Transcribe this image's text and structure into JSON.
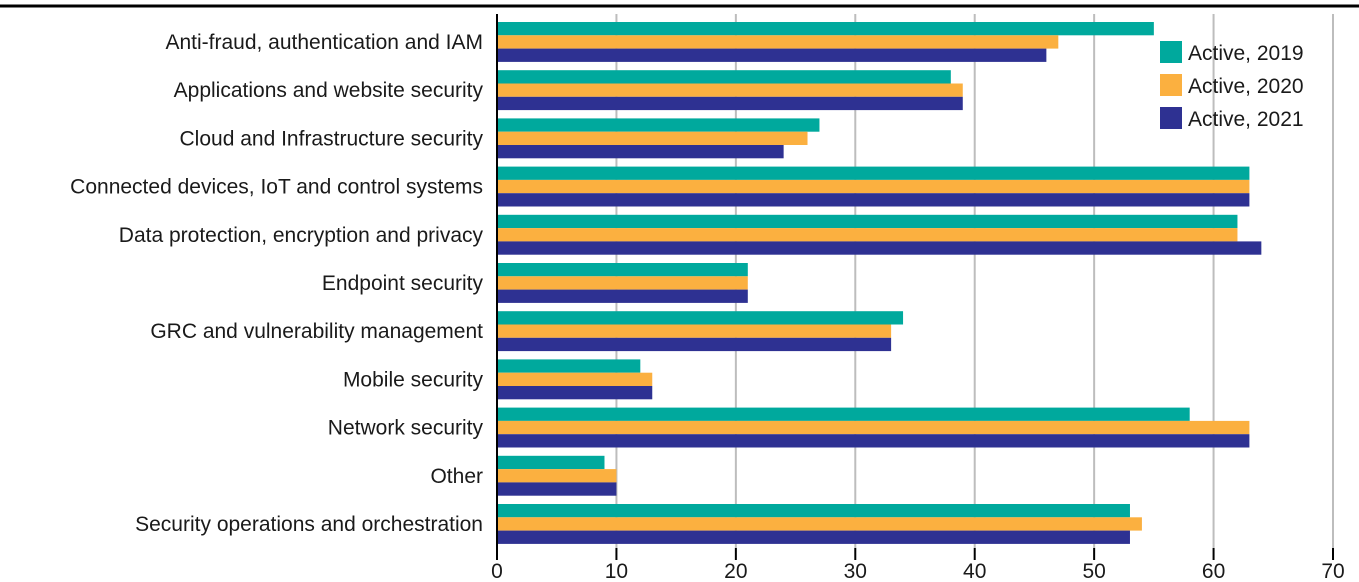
{
  "chart_data": {
    "type": "bar",
    "orientation": "horizontal",
    "title": "",
    "xlabel": "",
    "ylabel": "",
    "xlim": [
      0,
      70
    ],
    "x_ticks": [
      0,
      10,
      20,
      30,
      40,
      50,
      60,
      70
    ],
    "grid": "vertical",
    "legend_position": "top-right",
    "categories": [
      "Anti-fraud, authentication and IAM",
      "Applications and website security",
      "Cloud and Infrastructure security",
      "Connected devices, IoT and control systems",
      "Data protection, encryption and privacy",
      "Endpoint security",
      "GRC and vulnerability management",
      "Mobile security",
      "Network security",
      "Other",
      "Security operations and orchestration"
    ],
    "series": [
      {
        "name": "Active, 2019",
        "color": "#00a99d",
        "values": [
          55,
          38,
          27,
          63,
          62,
          21,
          34,
          12,
          58,
          9,
          53
        ]
      },
      {
        "name": "Active, 2020",
        "color": "#fbb040",
        "values": [
          47,
          39,
          26,
          63,
          62,
          21,
          33,
          13,
          63,
          10,
          54
        ]
      },
      {
        "name": "Active, 2021",
        "color": "#2e3192",
        "values": [
          46,
          39,
          24,
          63,
          64,
          21,
          33,
          13,
          63,
          10,
          53
        ]
      }
    ]
  }
}
